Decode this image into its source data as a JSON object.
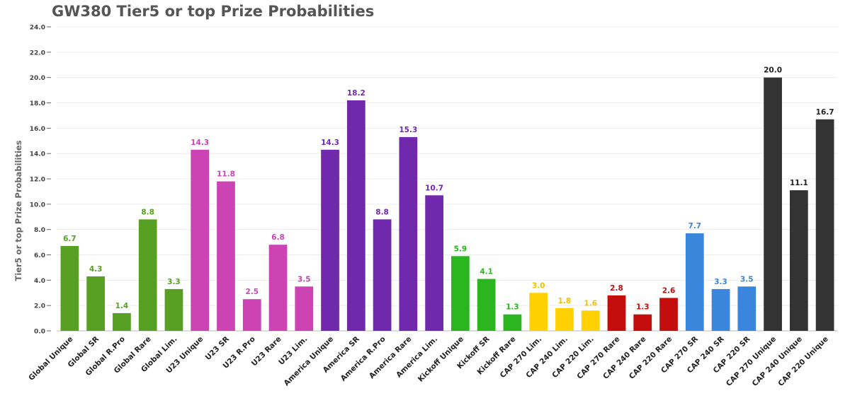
{
  "chart_data": {
    "type": "bar",
    "title": "GW380 Tier5 or top Prize Probabilities",
    "ylabel": "Tier5 or top Prize Probabilities",
    "xlabel": "",
    "ylim": [
      0,
      24
    ],
    "yticks": [
      "0.0",
      "2.0",
      "4.0",
      "6.0",
      "8.0",
      "10.0",
      "12.0",
      "14.0",
      "16.0",
      "18.0",
      "20.0",
      "22.0",
      "24.0"
    ],
    "grid": true,
    "categories": [
      "Global Unique",
      "Global SR",
      "Global R.Pro",
      "Global Rare",
      "Global Lim.",
      "U23 Unique",
      "U23 SR",
      "U23 R.Pro",
      "U23 Rare",
      "U23 Lim.",
      "America Unique",
      "America SR",
      "America R.Pro",
      "America Rare",
      "America Lim.",
      "Kickoff Unique",
      "Kickoff SR",
      "Kickoff Rare",
      "CAP 270 Lim.",
      "CAP 240 Lim.",
      "CAP 220 Lim.",
      "CAP 270 Rare",
      "CAP 240 Rare",
      "CAP 220 Rare",
      "CAP 270 SR",
      "CAP 240 SR",
      "CAP 220 SR",
      "CAP 270 Unique",
      "CAP 240 Unique",
      "CAP 220 Unique"
    ],
    "values": [
      6.7,
      4.3,
      1.4,
      8.8,
      3.3,
      14.3,
      11.8,
      2.5,
      6.8,
      3.5,
      14.3,
      18.2,
      8.8,
      15.3,
      10.7,
      5.9,
      4.1,
      1.3,
      3.0,
      1.8,
      1.6,
      2.8,
      1.3,
      2.6,
      7.7,
      3.3,
      3.5,
      20.0,
      11.1,
      16.7
    ],
    "value_labels": [
      "6.7",
      "4.3",
      "1.4",
      "8.8",
      "3.3",
      "14.3",
      "11.8",
      "2.5",
      "6.8",
      "3.5",
      "14.3",
      "18.2",
      "8.8",
      "15.3",
      "10.7",
      "5.9",
      "4.1",
      "1.3",
      "3.0",
      "1.8",
      "1.6",
      "2.8",
      "1.3",
      "2.6",
      "7.7",
      "3.3",
      "3.5",
      "20.0",
      "11.1",
      "16.7"
    ],
    "bar_colors": [
      "#57a023",
      "#57a023",
      "#57a023",
      "#57a023",
      "#57a023",
      "#cc44b4",
      "#cc44b4",
      "#cc44b4",
      "#cc44b4",
      "#cc44b4",
      "#7029ad",
      "#7029ad",
      "#7029ad",
      "#7029ad",
      "#7029ad",
      "#2bb51f",
      "#2bb51f",
      "#2bb51f",
      "#ffd100",
      "#ffd100",
      "#ffd100",
      "#c40d0d",
      "#c40d0d",
      "#c40d0d",
      "#3a86dd",
      "#3a86dd",
      "#3a86dd",
      "#333333",
      "#333333",
      "#333333"
    ],
    "label_colors": [
      "#57a023",
      "#57a023",
      "#57a023",
      "#57a023",
      "#57a023",
      "#cc44b4",
      "#cc44b4",
      "#cc44b4",
      "#cc44b4",
      "#cc44b4",
      "#7029ad",
      "#7029ad",
      "#7029ad",
      "#7029ad",
      "#7029ad",
      "#2bb51f",
      "#2bb51f",
      "#2bb51f",
      "#f2c200",
      "#f2c200",
      "#f2c200",
      "#c40d0d",
      "#c40d0d",
      "#c40d0d",
      "#3a86dd",
      "#3a86dd",
      "#3a86dd",
      "#222222",
      "#222222",
      "#222222"
    ]
  }
}
